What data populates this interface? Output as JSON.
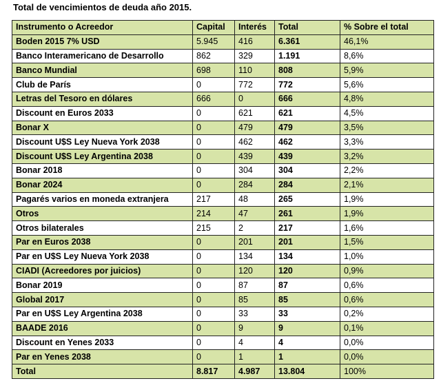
{
  "title": "Total de vencimientos de deuda año 2015.",
  "columns": [
    "Instrumento o Acreedor",
    "Capital",
    "Interés",
    "Total",
    "% Sobre el total"
  ],
  "rows": [
    {
      "name": "Boden 2015 7% USD",
      "capital": "5.945",
      "interes": "416",
      "total": "6.361",
      "pct": "46,1%",
      "shade": "green"
    },
    {
      "name": "Banco Interamericano de Desarrollo",
      "capital": "862",
      "interes": "329",
      "total": "1.191",
      "pct": "8,6%",
      "shade": "white"
    },
    {
      "name": "Banco Mundial",
      "capital": "698",
      "interes": "110",
      "total": "808",
      "pct": "5,9%",
      "shade": "green"
    },
    {
      "name": "Club de París",
      "capital": "0",
      "interes": "772",
      "total": "772",
      "pct": "5,6%",
      "shade": "white"
    },
    {
      "name": "Letras del Tesoro en dólares",
      "capital": "666",
      "interes": "0",
      "total": "666",
      "pct": "4,8%",
      "shade": "green"
    },
    {
      "name": "Discount en Euros 2033",
      "capital": "0",
      "interes": "621",
      "total": "621",
      "pct": "4,5%",
      "shade": "white"
    },
    {
      "name": "Bonar X",
      "capital": "0",
      "interes": "479",
      "total": "479",
      "pct": "3,5%",
      "shade": "green"
    },
    {
      "name": "Discount U$S Ley Nueva York 2038",
      "capital": "0",
      "interes": "462",
      "total": "462",
      "pct": "3,3%",
      "shade": "white"
    },
    {
      "name": "Discount U$S Ley Argentina 2038",
      "capital": "0",
      "interes": "439",
      "total": "439",
      "pct": "3,2%",
      "shade": "green"
    },
    {
      "name": "Bonar 2018",
      "capital": "0",
      "interes": "304",
      "total": "304",
      "pct": "2,2%",
      "shade": "white"
    },
    {
      "name": "Bonar 2024",
      "capital": "0",
      "interes": "284",
      "total": "284",
      "pct": "2,1%",
      "shade": "green"
    },
    {
      "name": "Pagarés varios en moneda extranjera",
      "capital": "217",
      "interes": "48",
      "total": "265",
      "pct": "1,9%",
      "shade": "white"
    },
    {
      "name": "Otros",
      "capital": "214",
      "interes": "47",
      "total": "261",
      "pct": "1,9%",
      "shade": "green"
    },
    {
      "name": "Otros bilaterales",
      "capital": "215",
      "interes": "2",
      "total": "217",
      "pct": "1,6%",
      "shade": "white"
    },
    {
      "name": "Par en Euros 2038",
      "capital": "0",
      "interes": "201",
      "total": "201",
      "pct": "1,5%",
      "shade": "green"
    },
    {
      "name": "Par en U$S Ley Nueva York 2038",
      "capital": "0",
      "interes": "134",
      "total": "134",
      "pct": "1,0%",
      "shade": "white"
    },
    {
      "name": "CIADI (Acreedores por juicios)",
      "capital": "0",
      "interes": "120",
      "total": "120",
      "pct": "0,9%",
      "shade": "green"
    },
    {
      "name": "Bonar 2019",
      "capital": "0",
      "interes": "87",
      "total": "87",
      "pct": "0,6%",
      "shade": "white"
    },
    {
      "name": "Global 2017",
      "capital": "0",
      "interes": "85",
      "total": "85",
      "pct": "0,6%",
      "shade": "green"
    },
    {
      "name": "Par en U$S Ley Argentina 2038",
      "capital": "0",
      "interes": "33",
      "total": "33",
      "pct": "0,2%",
      "shade": "white"
    },
    {
      "name": "BAADE 2016",
      "capital": "0",
      "interes": "9",
      "total": "9",
      "pct": "0,1%",
      "shade": "green"
    },
    {
      "name": "Discount en Yenes 2033",
      "capital": "0",
      "interes": "4",
      "total": "4",
      "pct": "0,0%",
      "shade": "white"
    },
    {
      "name": "Par en Yenes 2038",
      "capital": "0",
      "interes": "1",
      "total": "1",
      "pct": "0,0%",
      "shade": "green"
    }
  ],
  "footer": {
    "name": "Total",
    "capital": "8.817",
    "interes": "4.987",
    "total": "13.804",
    "pct": "100%"
  },
  "colors": {
    "green": "#d7e4a8",
    "white": "#ffffff",
    "border": "#222222"
  }
}
